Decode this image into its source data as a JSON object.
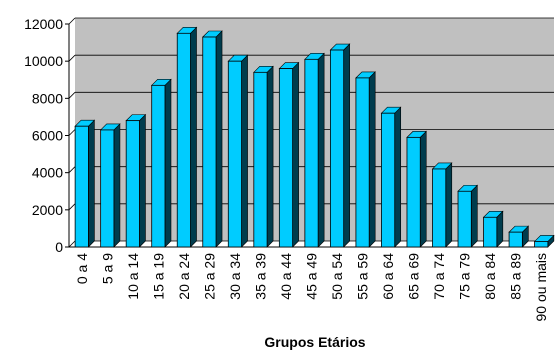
{
  "chart_data": {
    "type": "bar",
    "title": "",
    "xlabel": "Grupos Etários",
    "ylabel": "",
    "categories": [
      "0 a 4",
      "5 a 9",
      "10 a 14",
      "15 a 19",
      "20 a 24",
      "25 a 29",
      "30 a 34",
      "35 a 39",
      "40 a 44",
      "45 a 49",
      "50 a 54",
      "55 a 59",
      "60 a 64",
      "65 a 69",
      "70 a 74",
      "75 a 79",
      "80 a 84",
      "85 a 89",
      "90 ou mais"
    ],
    "values": [
      6500,
      6300,
      6800,
      8700,
      11500,
      11300,
      10000,
      9400,
      9600,
      10100,
      10600,
      9100,
      7200,
      5900,
      4200,
      3000,
      1600,
      800,
      300
    ],
    "ylim": [
      0,
      12000
    ],
    "yticks": [
      0,
      2000,
      4000,
      6000,
      8000,
      10000,
      12000
    ],
    "grid": true,
    "legend": "none",
    "colors": {
      "bar": "#00ccff",
      "bar_side": "#003c4d",
      "plot_area": "#c0c0c0",
      "grid": "#000000",
      "outline": "#000000"
    }
  }
}
